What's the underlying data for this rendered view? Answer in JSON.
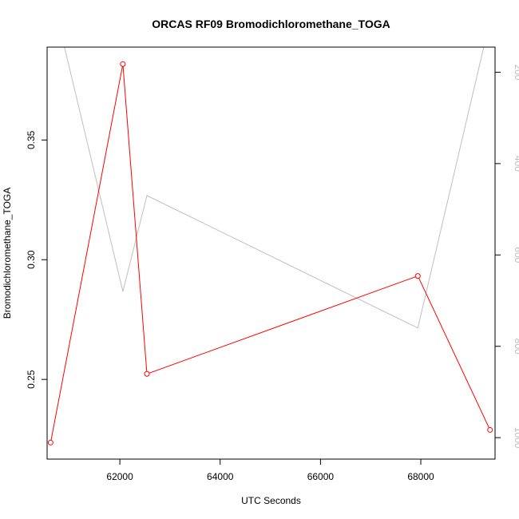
{
  "chart_data": {
    "type": "line",
    "title": "ORCAS RF09 Bromodichloromethane_TOGA",
    "xlabel": "UTC Seconds",
    "ylabel": "Bromodichloromethane_TOGA",
    "xlim": [
      60550,
      69480
    ],
    "ylim": [
      0.2167,
      0.3888
    ],
    "y2lim": [
      1047,
      145
    ],
    "y2_reversed": true,
    "x_ticks": [
      62000,
      64000,
      66000,
      68000
    ],
    "x_tick_labels": [
      "62000",
      "64000",
      "66000",
      "68000"
    ],
    "y_ticks": [
      0.25,
      0.3,
      0.35
    ],
    "y_tick_labels": [
      "0.25",
      "0.30",
      "0.35"
    ],
    "y2_ticks": [
      200,
      400,
      600,
      800,
      1000
    ],
    "y2_tick_labels": [
      "200",
      "400",
      "600",
      "800",
      "1000"
    ],
    "grid": false,
    "legend": "none",
    "series": [
      {
        "axis": "left",
        "color": "#ff0000",
        "markers": "open-circle",
        "x": [
          60620,
          62060,
          62540,
          67940,
          69380
        ],
        "values": [
          0.2236,
          0.3817,
          0.2523,
          0.2932,
          0.2289
        ]
      },
      {
        "axis": "right",
        "color": "#bebebe",
        "markers": "none",
        "x": [
          60450,
          62060,
          62540,
          67940,
          69500
        ],
        "values": [
          -60,
          680,
          470,
          760,
          30
        ]
      }
    ]
  }
}
